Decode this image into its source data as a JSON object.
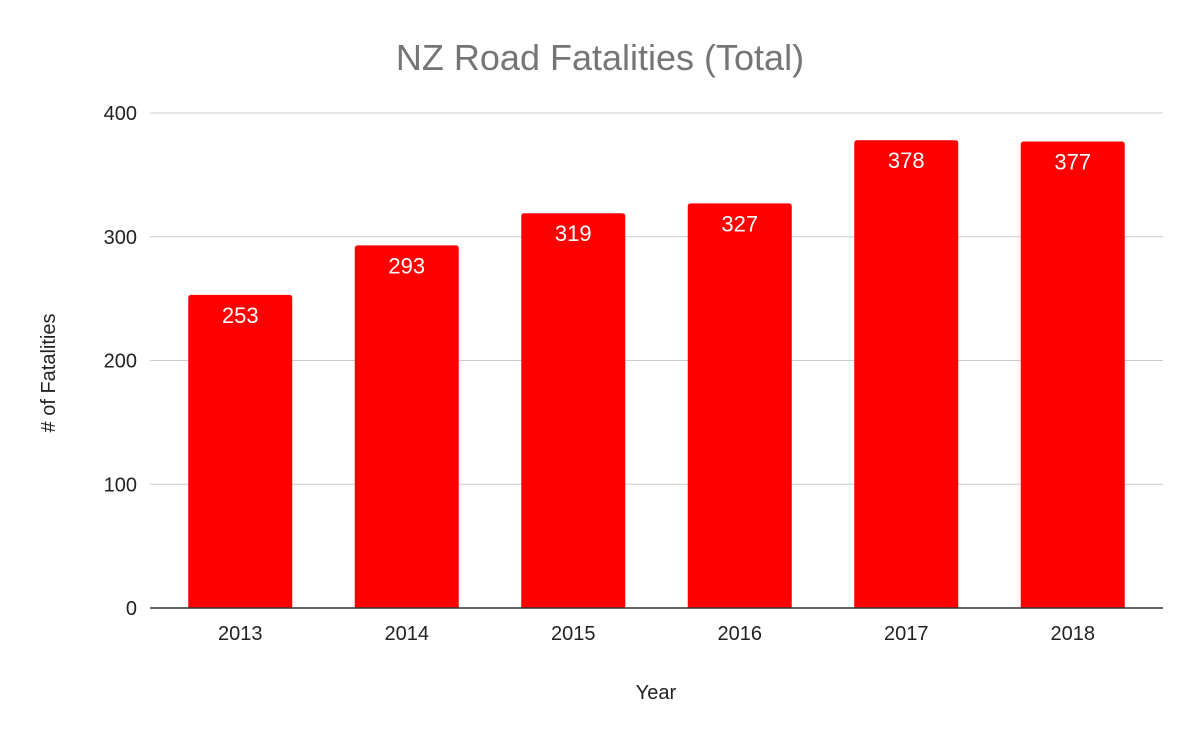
{
  "chart_data": {
    "type": "bar",
    "title": "NZ Road Fatalities (Total)",
    "xlabel": "Year",
    "ylabel": "# of Fatalities",
    "categories": [
      "2013",
      "2014",
      "2015",
      "2016",
      "2017",
      "2018"
    ],
    "values": [
      253,
      293,
      319,
      327,
      378,
      377
    ],
    "ylim": [
      0,
      400
    ],
    "yticks": [
      "0",
      "100",
      "200",
      "300",
      "400"
    ],
    "data_labels": [
      "253",
      "293",
      "319",
      "327",
      "378",
      "377"
    ],
    "grid": true,
    "legend": "none",
    "colors": {
      "bar": "#ff0000",
      "title": "#757575",
      "grid": "#cccccc",
      "axis": "#333333",
      "text": "#222222",
      "data_label": "#ffffff"
    }
  }
}
